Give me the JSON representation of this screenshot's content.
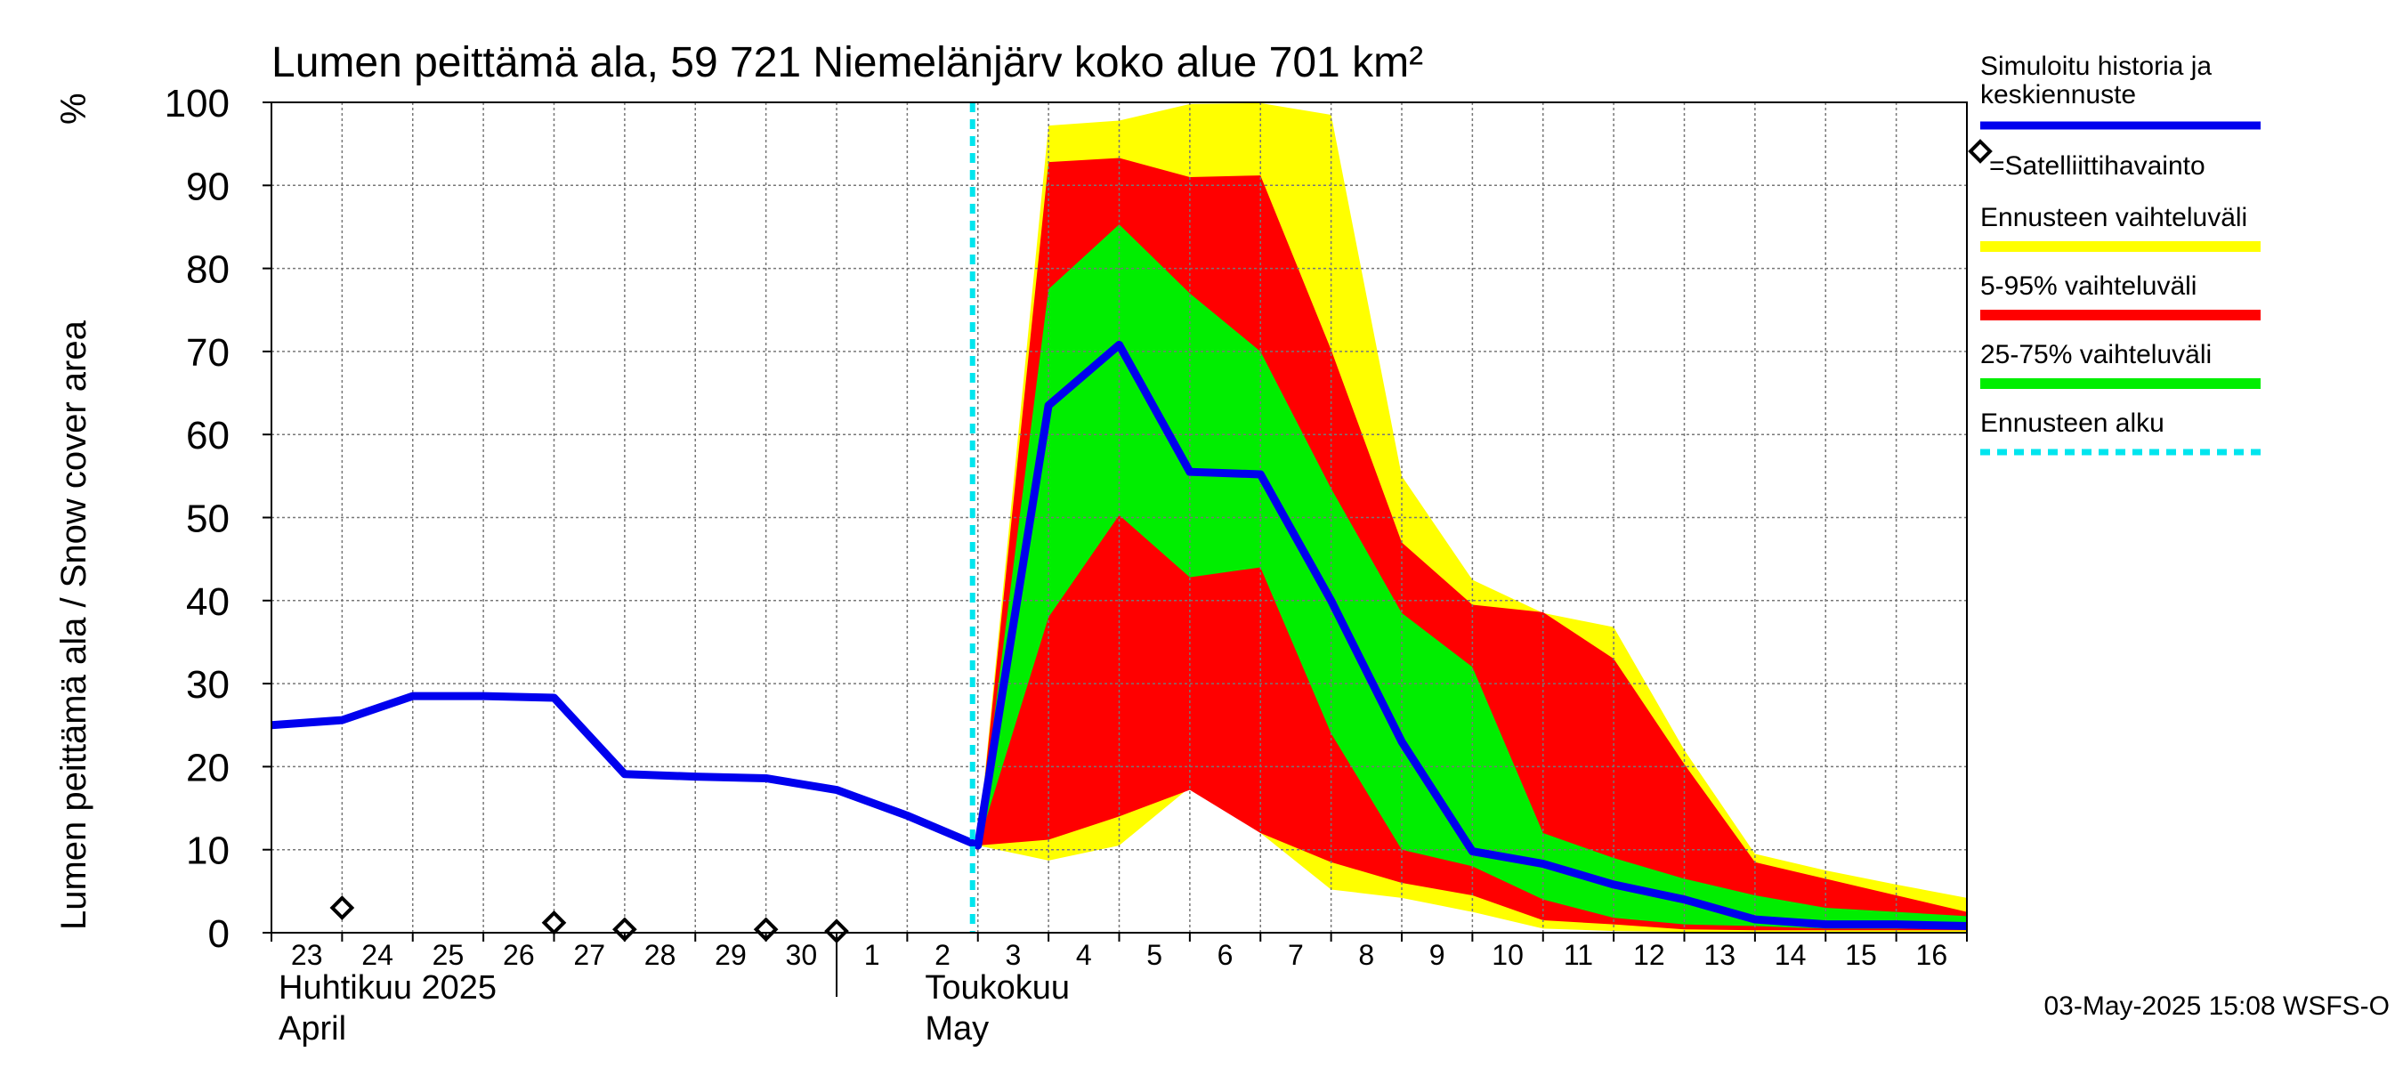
{
  "chart_data": {
    "type": "area",
    "title": "Lumen peittämä ala, 59 721 Niemelänjärv koko alue 701 km²",
    "ylabel": "Lumen peittämä ala / Snow cover area",
    "yunit": "%",
    "ylim": [
      0,
      100
    ],
    "yticks": [
      0,
      10,
      20,
      30,
      40,
      50,
      60,
      70,
      80,
      90,
      100
    ],
    "xlim": [
      "2025-04-23",
      "2025-05-17"
    ],
    "x_tick_labels": [
      "23",
      "24",
      "25",
      "26",
      "27",
      "28",
      "29",
      "30",
      "1",
      "2",
      "3",
      "4",
      "5",
      "6",
      "7",
      "8",
      "9",
      "10",
      "11",
      "12",
      "13",
      "14",
      "15",
      "16"
    ],
    "month_labels": [
      {
        "line1": "Huhtikuu  2025",
        "line2": "April"
      },
      {
        "line1": "Toukokuu",
        "line2": "May"
      }
    ],
    "forecast_start": "2025-05-03",
    "grid": true,
    "legend_position": "right",
    "colors": {
      "history": "#0000ee",
      "range_full": "#ffff00",
      "range_5_95": "#ff0000",
      "range_25_75": "#00ee00",
      "forecast_start": "#00e5ee",
      "observation": "#000000"
    },
    "history": {
      "name": "Simuloitu historia ja keskiennuste",
      "x": [
        "2025-04-23",
        "2025-04-24",
        "2025-04-25",
        "2025-04-26",
        "2025-04-27",
        "2025-04-28",
        "2025-04-29",
        "2025-04-30",
        "2025-05-01",
        "2025-05-02",
        "2025-05-03",
        "2025-05-04",
        "2025-05-05",
        "2025-05-06",
        "2025-05-07",
        "2025-05-08",
        "2025-05-09",
        "2025-05-10",
        "2025-05-11",
        "2025-05-12",
        "2025-05-13",
        "2025-05-14",
        "2025-05-15",
        "2025-05-16",
        "2025-05-17"
      ],
      "y": [
        25.0,
        25.6,
        28.5,
        28.5,
        28.3,
        19.1,
        18.8,
        18.6,
        17.2,
        14.1,
        10.5,
        63.5,
        70.8,
        55.5,
        55.2,
        40.0,
        23.0,
        9.8,
        8.3,
        5.8,
        4.0,
        1.6,
        1.0,
        1.0,
        0.8
      ]
    },
    "forecast_x": [
      "2025-05-03",
      "2025-05-04",
      "2025-05-05",
      "2025-05-06",
      "2025-05-07",
      "2025-05-08",
      "2025-05-09",
      "2025-05-10",
      "2025-05-11",
      "2025-05-12",
      "2025-05-13",
      "2025-05-14",
      "2025-05-15",
      "2025-05-16",
      "2025-05-17"
    ],
    "bands": [
      {
        "name": "Ennusteen vaihteluväli",
        "color": "#ffff00",
        "lower": [
          10.5,
          8.7,
          10.5,
          17.5,
          12.0,
          5.2,
          4.2,
          2.5,
          0.5,
          0.2,
          0.1,
          0.1,
          0.1,
          0.1,
          0.1
        ],
        "upper": [
          10.5,
          97.2,
          97.8,
          99.8,
          99.9,
          98.5,
          55.0,
          42.5,
          38.5,
          36.8,
          22.0,
          9.5,
          7.5,
          5.8,
          4.2
        ]
      },
      {
        "name": "5-95% vaihteluväli",
        "color": "#ff0000",
        "lower": [
          10.5,
          11.2,
          14.0,
          17.2,
          12.0,
          8.5,
          6.0,
          4.5,
          1.5,
          1.0,
          0.4,
          0.3,
          0.3,
          0.3,
          0.3
        ],
        "upper": [
          10.5,
          92.8,
          93.3,
          91.0,
          91.2,
          70.2,
          47.0,
          39.5,
          38.6,
          33.0,
          20.3,
          8.5,
          6.5,
          4.5,
          2.5
        ]
      },
      {
        "name": "25-75% vaihteluväli",
        "color": "#00ee00",
        "lower": [
          10.5,
          38.0,
          50.3,
          42.8,
          44.0,
          24.0,
          10.0,
          8.0,
          4.0,
          1.8,
          1.0,
          0.8,
          0.5,
          0.5,
          0.5
        ],
        "upper": [
          10.5,
          77.5,
          85.3,
          77.0,
          70.0,
          53.5,
          38.5,
          32.0,
          12.0,
          9.0,
          6.5,
          4.5,
          3.0,
          2.5,
          2.0
        ]
      }
    ],
    "observations": {
      "name": "=Satelliittihavainto",
      "x": [
        "2025-04-24",
        "2025-04-27",
        "2025-04-28",
        "2025-04-30",
        "2025-05-01"
      ],
      "y": [
        3.0,
        1.2,
        0.4,
        0.4,
        0.2
      ]
    },
    "legend": [
      {
        "label": "Simuloitu historia ja keskiennuste",
        "style": "line",
        "color": "#0000ee"
      },
      {
        "label": "=Satelliittihavainto",
        "style": "diamond",
        "color": "#000000"
      },
      {
        "label": "Ennusteen vaihteluväli",
        "style": "band",
        "color": "#ffff00"
      },
      {
        "label": "5-95% vaihteluväli",
        "style": "band",
        "color": "#ff0000"
      },
      {
        "label": "25-75% vaihteluväli",
        "style": "band",
        "color": "#00ee00"
      },
      {
        "label": "Ennusteen alku",
        "style": "dashed",
        "color": "#00e5ee"
      }
    ],
    "footer": "03-May-2025 15:08 WSFS-O"
  }
}
